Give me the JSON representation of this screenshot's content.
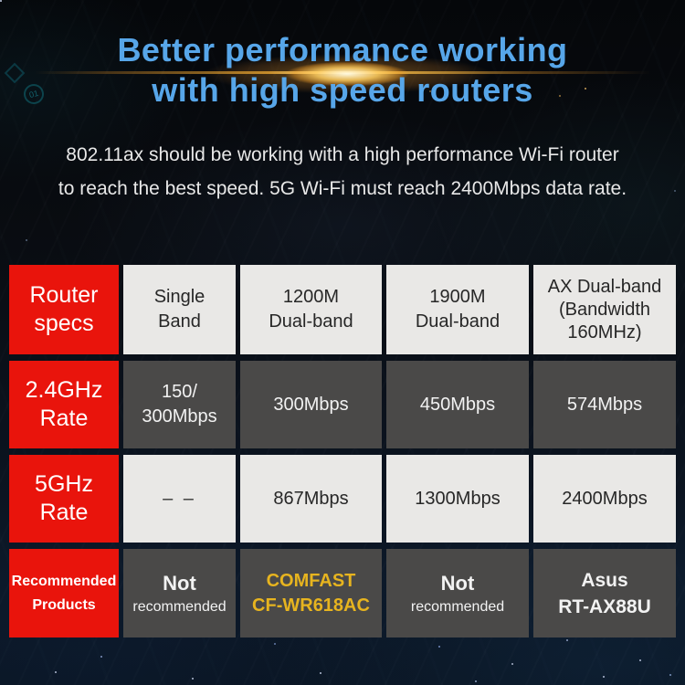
{
  "colors": {
    "title_blue": "#57a6e9",
    "red_cell": "#e9140c",
    "dark_cell": "#4a4948",
    "light_cell": "#e9e8e6",
    "gold_text": "#e7b41f",
    "flare_gold": "#f5a623"
  },
  "header": {
    "title_line1": "Better performance working",
    "title_line2": "with high speed routers",
    "subtitle_line1": "802.11ax should be working with a high performance Wi-Fi router",
    "subtitle_line2": "to reach the best speed. 5G Wi-Fi must reach 2400Mbps data rate."
  },
  "decorations": {
    "chip_label": "01"
  },
  "table": {
    "header": {
      "col0": {
        "line1": "Router",
        "line2": "specs"
      },
      "col1": {
        "line1": "Single",
        "line2": "Band"
      },
      "col2": {
        "line1": "1200M",
        "line2": "Dual-band"
      },
      "col3": {
        "line1": "1900M",
        "line2": "Dual-band"
      },
      "col4": {
        "line1": "AX Dual-band",
        "line2": "(Bandwidth",
        "line3": "160MHz)"
      }
    },
    "row_24ghz": {
      "label": {
        "line1": "2.4GHz",
        "line2": "Rate"
      },
      "single_band": {
        "line1": "150/",
        "line2": "300Mbps"
      },
      "dual_1200": "300Mbps",
      "dual_1900": "450Mbps",
      "ax_band": "574Mbps"
    },
    "row_5ghz": {
      "label": {
        "line1": "5GHz",
        "line2": "Rate"
      },
      "single_band": "– –",
      "dual_1200": "867Mbps",
      "dual_1900": "1300Mbps",
      "ax_band": "2400Mbps"
    },
    "row_recommended": {
      "label": {
        "line1": "Recommended",
        "line2": "Products"
      },
      "single_band": {
        "line1": "Not",
        "line2": "recommended"
      },
      "dual_1200": {
        "line1": "COMFAST",
        "line2": "CF-WR618AC"
      },
      "dual_1900": {
        "line1": "Not",
        "line2": "recommended"
      },
      "ax_band": {
        "line1": "Asus",
        "line2": "RT-AX88U"
      }
    }
  },
  "chart_data": {
    "type": "table",
    "title": "Better performance working with high speed routers",
    "subtitle": "802.11ax should be working with a high performance Wi-Fi router to reach the best speed. 5G Wi-Fi must reach 2400Mbps data rate.",
    "columns": [
      "Router specs",
      "Single Band",
      "1200M Dual-band",
      "1900M Dual-band",
      "AX Dual-band (Bandwidth 160MHz)"
    ],
    "rows": [
      {
        "label": "2.4GHz Rate",
        "values": [
          "150/300Mbps",
          "300Mbps",
          "450Mbps",
          "574Mbps"
        ]
      },
      {
        "label": "5GHz Rate",
        "values": [
          "– –",
          "867Mbps",
          "1300Mbps",
          "2400Mbps"
        ]
      },
      {
        "label": "Recommended Products",
        "values": [
          "Not recommended",
          "COMFAST CF-WR618AC",
          "Not recommended",
          "Asus RT-AX88U"
        ]
      }
    ],
    "highlighted_cell": "COMFAST CF-WR618AC"
  }
}
